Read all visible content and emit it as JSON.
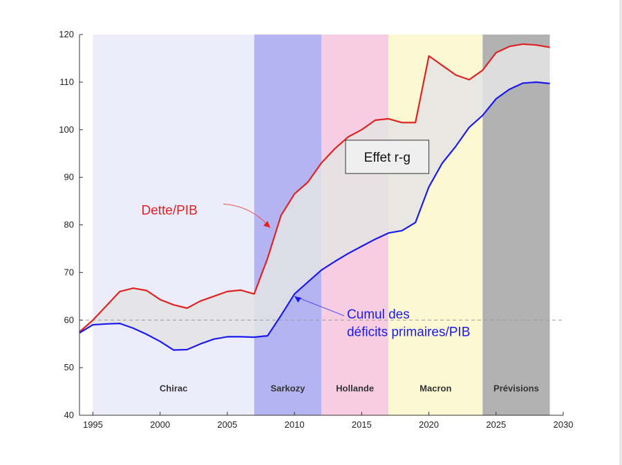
{
  "chart_data": {
    "type": "line",
    "xlim": [
      1994,
      2030
    ],
    "ylim": [
      40,
      120
    ],
    "x_ticks": [
      1995,
      2000,
      2005,
      2010,
      2015,
      2020,
      2025,
      2030
    ],
    "y_ticks": [
      40,
      50,
      60,
      70,
      80,
      90,
      100,
      110,
      120
    ],
    "reference_line": {
      "y": 60,
      "style": "dashed",
      "color": "#9a9a9a"
    },
    "periods": [
      {
        "name": "Chirac",
        "start": 1995,
        "end": 2007,
        "color": "#ececfb"
      },
      {
        "name": "Sarkozy",
        "start": 2007,
        "end": 2012,
        "color": "#b4b4f3"
      },
      {
        "name": "Hollande",
        "start": 2012,
        "end": 2017,
        "color": "#f6cde3"
      },
      {
        "name": "Macron",
        "start": 2017,
        "end": 2024,
        "color": "#fbf8d2"
      },
      {
        "name": "Prévisions",
        "start": 2024,
        "end": 2029,
        "color": "#b2b2b2"
      }
    ],
    "series": [
      {
        "name": "Dette/PIB",
        "color": "#e02222",
        "x": [
          1994,
          1995,
          1996,
          1997,
          1998,
          1999,
          2000,
          2001,
          2002,
          2003,
          2004,
          2005,
          2006,
          2007,
          2008,
          2009,
          2010,
          2011,
          2012,
          2013,
          2014,
          2015,
          2016,
          2017,
          2018,
          2019,
          2020,
          2021,
          2022,
          2023,
          2024,
          2025,
          2026,
          2027,
          2028,
          2029
        ],
        "values": [
          57.5,
          60,
          63,
          66,
          66.7,
          66.2,
          64.3,
          63.2,
          62.5,
          64,
          65,
          66,
          66.3,
          65.5,
          73,
          82,
          86.5,
          89,
          93,
          96,
          98.5,
          100,
          102,
          102.3,
          101.5,
          101.5,
          115.5,
          113.5,
          111.5,
          110.5,
          112.5,
          116.2,
          117.5,
          118,
          117.8,
          117.3
        ]
      },
      {
        "name": "Cumul des déficits primaires/PIB",
        "color": "#1a1aee",
        "x": [
          1994,
          1995,
          1996,
          1997,
          1998,
          1999,
          2000,
          2001,
          2002,
          2003,
          2004,
          2005,
          2006,
          2007,
          2008,
          2009,
          2010,
          2011,
          2012,
          2013,
          2014,
          2015,
          2016,
          2017,
          2018,
          2019,
          2020,
          2021,
          2022,
          2023,
          2024,
          2025,
          2026,
          2027,
          2028,
          2029
        ],
        "values": [
          57.3,
          59,
          59.2,
          59.3,
          58.3,
          57,
          55.5,
          53.7,
          53.8,
          55,
          56,
          56.5,
          56.5,
          56.4,
          56.7,
          61,
          65.5,
          68,
          70.5,
          72.3,
          74,
          75.5,
          77,
          78.3,
          78.8,
          80.5,
          88,
          93,
          96.5,
          100.5,
          103,
          106.5,
          108.5,
          109.8,
          110,
          109.7
        ]
      }
    ],
    "annotations": {
      "effet_label": "Effet r-g",
      "dette_label": "Dette/PIB",
      "cumul_label_line1": "Cumul des",
      "cumul_label_line2": "déficits primaires/PIB"
    }
  }
}
